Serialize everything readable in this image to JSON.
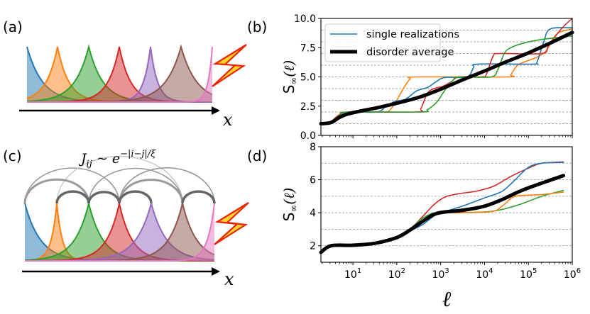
{
  "panels": {
    "a": {
      "label": "(a)",
      "axis_label": "x"
    },
    "b": {
      "label": "(b)"
    },
    "c": {
      "label": "(c)",
      "axis_label": "x",
      "coupling_formula": {
        "lhs": "J",
        "sub": "ij",
        "rel": " ~ ",
        "base": "e",
        "exp": "−|i−j|/ξ"
      }
    },
    "d": {
      "label": "(d)"
    }
  },
  "orbital_colors": [
    "#1f77b4",
    "#ff7f0e",
    "#2ca02c",
    "#d62728",
    "#9467bd",
    "#8c564b",
    "#e377c2"
  ],
  "chart_data": [
    {
      "id": "b",
      "type": "line",
      "xscale": "log",
      "xlim_log10": [
        0.27,
        6
      ],
      "ylim": [
        0,
        10
      ],
      "yticks": [
        0,
        2.5,
        5,
        7.5,
        10
      ],
      "ytick_labels": [
        "0.0",
        "2.5",
        "5.0",
        "7.5",
        "10.0"
      ],
      "grid_y": [
        1,
        2,
        3,
        4,
        5,
        6,
        7,
        8,
        9
      ],
      "grid": "y-dashed",
      "xtick_labels_shown": false,
      "ylabel": {
        "base": "S",
        "sub": "∞",
        "arg": "(ℓ)"
      },
      "legend": {
        "placement": "top-left",
        "entries": [
          {
            "label": "single realizations",
            "color": "#1f77b4",
            "style": "thin"
          },
          {
            "label": "disorder average",
            "color": "#000000",
            "style": "thick"
          }
        ]
      },
      "series": [
        {
          "name": "realization-orange",
          "color": "#ff7f0e",
          "points": [
            [
              0.27,
              1.0
            ],
            [
              0.45,
              1.05
            ],
            [
              0.7,
              1.7
            ],
            [
              0.9,
              2.0
            ],
            [
              1.7,
              2.0
            ],
            [
              1.85,
              2.2
            ],
            [
              2.0,
              3.0
            ],
            [
              2.15,
              4.0
            ],
            [
              2.3,
              4.8
            ],
            [
              2.45,
              5.0
            ],
            [
              4.5,
              5.0
            ],
            [
              4.6,
              5.2
            ],
            [
              4.75,
              6.0
            ],
            [
              5.0,
              6.4
            ],
            [
              5.2,
              6.7
            ],
            [
              5.4,
              7.2
            ],
            [
              5.55,
              8.2
            ],
            [
              5.7,
              8.8
            ],
            [
              6.0,
              9.1
            ]
          ]
        },
        {
          "name": "realization-blue",
          "color": "#1f77b4",
          "points": [
            [
              0.27,
              1.0
            ],
            [
              0.45,
              1.05
            ],
            [
              0.7,
              1.7
            ],
            [
              0.9,
              2.0
            ],
            [
              1.55,
              2.0
            ],
            [
              1.75,
              2.5
            ],
            [
              1.95,
              2.9
            ],
            [
              2.2,
              3.1
            ],
            [
              2.45,
              3.8
            ],
            [
              2.7,
              4.1
            ],
            [
              2.9,
              4.6
            ],
            [
              3.1,
              4.95
            ],
            [
              3.6,
              5.0
            ],
            [
              3.75,
              5.8
            ],
            [
              3.85,
              6.1
            ],
            [
              5.1,
              6.1
            ],
            [
              5.2,
              6.3
            ],
            [
              5.35,
              8.0
            ],
            [
              5.5,
              9.1
            ],
            [
              6.0,
              9.2
            ]
          ]
        },
        {
          "name": "realization-red",
          "color": "#d62728",
          "points": [
            [
              0.27,
              1.0
            ],
            [
              0.45,
              1.05
            ],
            [
              0.7,
              1.8
            ],
            [
              0.9,
              2.0
            ],
            [
              2.45,
              2.0
            ],
            [
              2.55,
              2.3
            ],
            [
              2.7,
              3.6
            ],
            [
              2.85,
              4.0
            ],
            [
              3.05,
              4.2
            ],
            [
              3.25,
              4.6
            ],
            [
              3.4,
              5.0
            ],
            [
              3.95,
              5.0
            ],
            [
              4.05,
              5.3
            ],
            [
              4.2,
              6.8
            ],
            [
              4.35,
              7.0
            ],
            [
              5.3,
              7.0
            ],
            [
              5.45,
              7.6
            ],
            [
              5.6,
              8.4
            ],
            [
              5.8,
              9.3
            ],
            [
              6.0,
              10.0
            ]
          ]
        },
        {
          "name": "realization-green",
          "color": "#2ca02c",
          "points": [
            [
              0.27,
              1.0
            ],
            [
              0.45,
              1.05
            ],
            [
              0.7,
              1.7
            ],
            [
              0.9,
              2.0
            ],
            [
              2.55,
              2.0
            ],
            [
              2.7,
              2.2
            ],
            [
              2.9,
              2.8
            ],
            [
              3.05,
              3.6
            ],
            [
              3.2,
              4.4
            ],
            [
              3.35,
              4.9
            ],
            [
              3.5,
              5.0
            ],
            [
              4.15,
              5.0
            ],
            [
              4.3,
              5.6
            ],
            [
              4.45,
              7.0
            ],
            [
              4.6,
              7.5
            ],
            [
              4.9,
              7.9
            ],
            [
              5.3,
              8.2
            ],
            [
              6.0,
              8.5
            ]
          ]
        },
        {
          "name": "disorder-average",
          "color": "#000000",
          "thick": true,
          "points": [
            [
              0.27,
              1.0
            ],
            [
              0.5,
              1.1
            ],
            [
              0.7,
              1.55
            ],
            [
              0.9,
              1.85
            ],
            [
              1.2,
              2.1
            ],
            [
              1.6,
              2.4
            ],
            [
              2.0,
              2.75
            ],
            [
              2.5,
              3.25
            ],
            [
              3.0,
              3.95
            ],
            [
              3.5,
              4.75
            ],
            [
              4.0,
              5.5
            ],
            [
              4.5,
              6.3
            ],
            [
              5.0,
              7.05
            ],
            [
              5.5,
              7.9
            ],
            [
              6.0,
              8.8
            ]
          ]
        }
      ]
    },
    {
      "id": "d",
      "type": "line",
      "xscale": "log",
      "xlim_log10": [
        0.27,
        6
      ],
      "ylim": [
        1,
        8
      ],
      "yticks": [
        2,
        4,
        6,
        8
      ],
      "ytick_labels": [
        "2",
        "4",
        "6",
        "8"
      ],
      "grid_y": [
        2,
        3,
        4,
        5,
        6,
        7
      ],
      "grid": "y-dashed",
      "xticks_log10": [
        1,
        2,
        3,
        4,
        5,
        6
      ],
      "xtick_labels": [
        {
          "b": "10",
          "e": "1"
        },
        {
          "b": "10",
          "e": "2"
        },
        {
          "b": "10",
          "e": "3"
        },
        {
          "b": "10",
          "e": "4"
        },
        {
          "b": "10",
          "e": "5"
        },
        {
          "b": "10",
          "e": "6"
        }
      ],
      "xlabel": "ℓ",
      "ylabel": {
        "base": "S",
        "sub": "∞",
        "arg": "(ℓ)"
      },
      "series": [
        {
          "name": "realization-red",
          "color": "#d62728",
          "points": [
            [
              0.27,
              1.6
            ],
            [
              0.5,
              2.0
            ],
            [
              1.0,
              2.03
            ],
            [
              1.5,
              2.15
            ],
            [
              2.0,
              2.5
            ],
            [
              2.3,
              3.0
            ],
            [
              2.6,
              3.8
            ],
            [
              2.85,
              4.5
            ],
            [
              3.1,
              4.95
            ],
            [
              3.4,
              5.15
            ],
            [
              3.8,
              5.3
            ],
            [
              4.2,
              5.6
            ],
            [
              4.6,
              6.2
            ],
            [
              5.0,
              6.7
            ],
            [
              5.3,
              7.0
            ],
            [
              5.8,
              7.08
            ]
          ]
        },
        {
          "name": "realization-blue",
          "color": "#1f77b4",
          "points": [
            [
              0.27,
              1.6
            ],
            [
              0.5,
              2.0
            ],
            [
              1.0,
              2.03
            ],
            [
              1.5,
              2.15
            ],
            [
              2.0,
              2.5
            ],
            [
              2.3,
              2.9
            ],
            [
              2.6,
              3.3
            ],
            [
              2.9,
              3.9
            ],
            [
              3.2,
              4.15
            ],
            [
              3.6,
              4.5
            ],
            [
              4.0,
              4.9
            ],
            [
              4.4,
              5.3
            ],
            [
              4.7,
              6.0
            ],
            [
              5.0,
              6.75
            ],
            [
              5.3,
              7.0
            ],
            [
              5.8,
              7.05
            ]
          ]
        },
        {
          "name": "realization-green",
          "color": "#2ca02c",
          "points": [
            [
              0.27,
              1.6
            ],
            [
              0.5,
              2.0
            ],
            [
              1.0,
              2.03
            ],
            [
              1.5,
              2.15
            ],
            [
              2.0,
              2.5
            ],
            [
              2.3,
              3.0
            ],
            [
              2.55,
              3.6
            ],
            [
              2.8,
              3.95
            ],
            [
              3.0,
              4.0
            ],
            [
              4.0,
              4.05
            ],
            [
              4.4,
              4.2
            ],
            [
              4.8,
              4.5
            ],
            [
              5.2,
              4.9
            ],
            [
              5.5,
              5.15
            ],
            [
              5.8,
              5.35
            ]
          ]
        },
        {
          "name": "realization-orange",
          "color": "#ff7f0e",
          "points": [
            [
              0.27,
              1.6
            ],
            [
              0.5,
              2.0
            ],
            [
              1.0,
              2.03
            ],
            [
              1.5,
              2.15
            ],
            [
              2.0,
              2.5
            ],
            [
              2.3,
              3.0
            ],
            [
              2.6,
              3.55
            ],
            [
              2.85,
              3.95
            ],
            [
              3.0,
              4.0
            ],
            [
              4.1,
              4.05
            ],
            [
              4.4,
              4.4
            ],
            [
              4.65,
              4.95
            ],
            [
              4.9,
              5.05
            ],
            [
              5.3,
              5.1
            ],
            [
              5.8,
              5.25
            ]
          ]
        },
        {
          "name": "disorder-average",
          "color": "#000000",
          "thick": true,
          "points": [
            [
              0.27,
              1.6
            ],
            [
              0.5,
              2.0
            ],
            [
              1.0,
              2.03
            ],
            [
              1.5,
              2.15
            ],
            [
              2.0,
              2.5
            ],
            [
              2.3,
              2.95
            ],
            [
              2.6,
              3.5
            ],
            [
              2.85,
              3.9
            ],
            [
              3.1,
              4.05
            ],
            [
              3.5,
              4.15
            ],
            [
              4.0,
              4.4
            ],
            [
              4.4,
              4.8
            ],
            [
              4.8,
              5.3
            ],
            [
              5.2,
              5.7
            ],
            [
              5.8,
              6.25
            ]
          ]
        }
      ]
    }
  ]
}
